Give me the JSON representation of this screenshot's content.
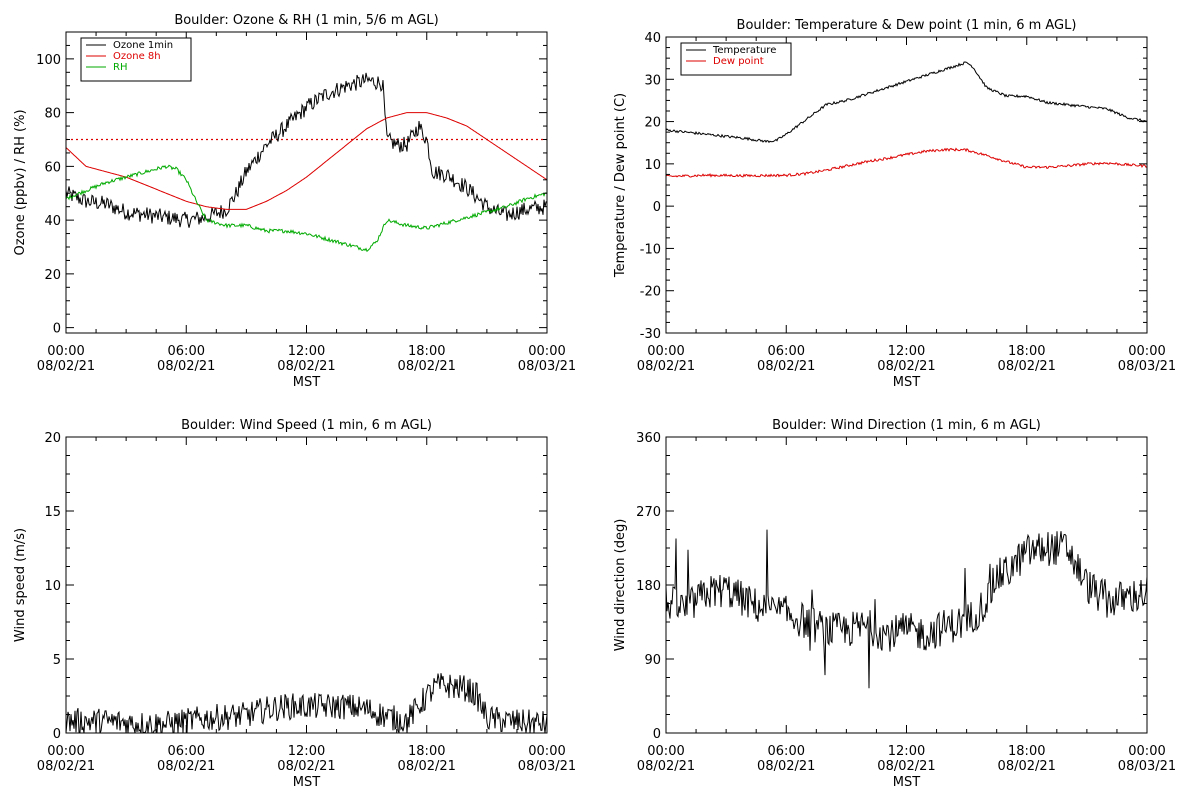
{
  "chart_data": [
    {
      "id": "ozone_rh",
      "type": "line",
      "title": "Boulder: Ozone & RH (1 min, 5/6 m AGL)",
      "xlabel": "MST",
      "ylabel": "Ozone (ppbv) / RH (%)",
      "xlim": [
        0,
        24
      ],
      "ylim": [
        -2,
        110
      ],
      "yticks": [
        0,
        20,
        40,
        60,
        80,
        100
      ],
      "xtick_labels": [
        {
          "time": "00:00",
          "date": "08/02/21"
        },
        {
          "time": "06:00",
          "date": "08/02/21"
        },
        {
          "time": "12:00",
          "date": "08/02/21"
        },
        {
          "time": "18:00",
          "date": "08/02/21"
        },
        {
          "time": "00:00",
          "date": "08/03/21"
        }
      ],
      "legend": {
        "placement": "top-left",
        "entries": [
          "Ozone 1min",
          "Ozone 8h",
          "RH"
        ]
      },
      "reference_lines": [
        {
          "y": 70,
          "color": "#dd0000",
          "style": "dotted"
        }
      ],
      "series": [
        {
          "name": "Ozone 1min",
          "color": "#000000",
          "noise": 3,
          "x": [
            0,
            1,
            2,
            3,
            4,
            5,
            6,
            7,
            8,
            8.5,
            9,
            10,
            11,
            12,
            13,
            14,
            15,
            15.8,
            16,
            16.5,
            17,
            17.6,
            18,
            18.3,
            19,
            20,
            21,
            21.5,
            22,
            23,
            24
          ],
          "y": [
            50,
            47,
            46,
            43,
            42,
            41,
            40,
            41,
            44,
            50,
            58,
            68,
            75,
            82,
            87,
            90,
            92,
            91,
            70,
            68,
            68,
            75,
            70,
            58,
            57,
            52,
            45,
            43,
            42,
            44,
            45
          ]
        },
        {
          "name": "Ozone 8h",
          "color": "#dd0000",
          "noise": 0,
          "x": [
            0,
            1,
            2,
            3,
            4,
            5,
            6,
            7,
            8,
            9,
            10,
            11,
            12,
            13,
            14,
            15,
            16,
            17,
            18,
            19,
            20,
            21,
            22,
            23,
            24
          ],
          "y": [
            67,
            60,
            58,
            56,
            53,
            50,
            47,
            45,
            44,
            44,
            47,
            51,
            56,
            62,
            68,
            74,
            78,
            80,
            80,
            78,
            75,
            70,
            65,
            60,
            55
          ]
        },
        {
          "name": "RH",
          "color": "#00aa00",
          "noise": 0.7,
          "x": [
            0,
            1,
            2,
            3,
            4,
            5,
            5.5,
            6,
            6.5,
            7,
            8,
            9,
            10,
            11,
            12,
            13,
            14,
            15,
            15.5,
            16,
            17,
            18,
            19,
            20,
            21,
            22,
            23,
            24
          ],
          "y": [
            48,
            51,
            54,
            56,
            58,
            60,
            59,
            55,
            47,
            40,
            38,
            38,
            36,
            36,
            35,
            33,
            31,
            29,
            32,
            40,
            38,
            37,
            39,
            41,
            43,
            45,
            48,
            50
          ]
        }
      ]
    },
    {
      "id": "temp_dew",
      "type": "line",
      "title": "Boulder: Temperature & Dew point (1 min, 6 m AGL)",
      "xlabel": "MST",
      "ylabel": "Temperature / Dew point (C)",
      "xlim": [
        0,
        24
      ],
      "ylim": [
        -30,
        40
      ],
      "yticks": [
        -30,
        -20,
        -10,
        0,
        10,
        20,
        30,
        40
      ],
      "xtick_labels": [
        {
          "time": "00:00",
          "date": "08/02/21"
        },
        {
          "time": "06:00",
          "date": "08/02/21"
        },
        {
          "time": "12:00",
          "date": "08/02/21"
        },
        {
          "time": "18:00",
          "date": "08/02/21"
        },
        {
          "time": "00:00",
          "date": "08/03/21"
        }
      ],
      "legend": {
        "placement": "top-left",
        "entries": [
          "Temperature",
          "Dew point"
        ]
      },
      "series": [
        {
          "name": "Temperature",
          "color": "#000000",
          "noise": 0.3,
          "x": [
            0,
            1,
            2,
            3,
            4,
            5,
            5.5,
            6,
            7,
            8,
            9,
            10,
            11,
            12,
            13,
            14,
            15,
            15.3,
            16,
            17,
            18,
            19,
            20,
            21,
            22,
            23,
            24
          ],
          "y": [
            18,
            17.5,
            17,
            16.5,
            16,
            15.3,
            15.5,
            17,
            20.5,
            24,
            25,
            26.5,
            28,
            29.5,
            31,
            32.5,
            34,
            33,
            28,
            26,
            26,
            24.5,
            24,
            23.5,
            23,
            21,
            20
          ]
        },
        {
          "name": "Dew point",
          "color": "#dd0000",
          "noise": 0.3,
          "x": [
            0,
            2,
            4,
            6,
            7,
            8,
            9,
            10,
            11,
            12,
            13,
            14,
            15,
            16,
            17,
            18,
            19,
            20,
            21,
            22,
            23,
            24
          ],
          "y": [
            7,
            7.3,
            7.2,
            7.3,
            7.7,
            8.5,
            9.5,
            10.5,
            11.3,
            12.2,
            13,
            13.4,
            13.3,
            12,
            10.5,
            9.2,
            9.2,
            9.5,
            10,
            10.2,
            9.8,
            9.5
          ]
        }
      ]
    },
    {
      "id": "wind_speed",
      "type": "line",
      "title": "Boulder: Wind Speed (1 min, 6 m AGL)",
      "xlabel": "MST",
      "ylabel": "Wind speed (m/s)",
      "xlim": [
        0,
        24
      ],
      "ylim": [
        0,
        20
      ],
      "yticks": [
        0,
        5,
        10,
        15,
        20
      ],
      "xtick_labels": [
        {
          "time": "00:00",
          "date": "08/02/21"
        },
        {
          "time": "06:00",
          "date": "08/02/21"
        },
        {
          "time": "12:00",
          "date": "08/02/21"
        },
        {
          "time": "18:00",
          "date": "08/02/21"
        },
        {
          "time": "00:00",
          "date": "08/03/21"
        }
      ],
      "series": [
        {
          "name": "",
          "color": "#000000",
          "noise": 0.9,
          "min": 0,
          "x": [
            0,
            1,
            2,
            3,
            4,
            5,
            6,
            7,
            8,
            9,
            10,
            11,
            12,
            13,
            14,
            15,
            16,
            17,
            18,
            18.5,
            19,
            20,
            20.5,
            21,
            22,
            23,
            24
          ],
          "y": [
            0.8,
            0.8,
            0.8,
            0.7,
            0.6,
            0.6,
            0.8,
            1,
            1.1,
            1.2,
            1.6,
            1.8,
            1.8,
            1.8,
            1.8,
            1.6,
            1.1,
            0.8,
            2.5,
            3.2,
            3.2,
            3,
            2.5,
            1,
            0.8,
            0.7,
            0.6
          ]
        }
      ]
    },
    {
      "id": "wind_dir",
      "type": "line",
      "title": "Boulder: Wind Direction (1 min, 6 m AGL)",
      "xlabel": "MST",
      "ylabel": "Wind direction (deg)",
      "xlim": [
        0,
        24
      ],
      "ylim": [
        0,
        360
      ],
      "yticks": [
        0,
        90,
        180,
        270,
        360
      ],
      "xtick_labels": [
        {
          "time": "00:00",
          "date": "08/02/21"
        },
        {
          "time": "06:00",
          "date": "08/02/21"
        },
        {
          "time": "12:00",
          "date": "08/02/21"
        },
        {
          "time": "18:00",
          "date": "08/02/21"
        },
        {
          "time": "00:00",
          "date": "08/03/21"
        }
      ],
      "series": [
        {
          "name": "",
          "color": "#000000",
          "noise": 22,
          "min": 0,
          "max": 360,
          "x": [
            0,
            1,
            2,
            3,
            4,
            5,
            6,
            7,
            8,
            9,
            10,
            11,
            12,
            13,
            14,
            15,
            16,
            16.5,
            17,
            18,
            19,
            20,
            21,
            22,
            23,
            24
          ],
          "y": [
            160,
            150,
            170,
            175,
            160,
            150,
            145,
            135,
            125,
            125,
            130,
            120,
            125,
            120,
            130,
            135,
            160,
            190,
            195,
            220,
            225,
            225,
            180,
            160,
            165,
            170
          ]
        }
      ]
    }
  ]
}
